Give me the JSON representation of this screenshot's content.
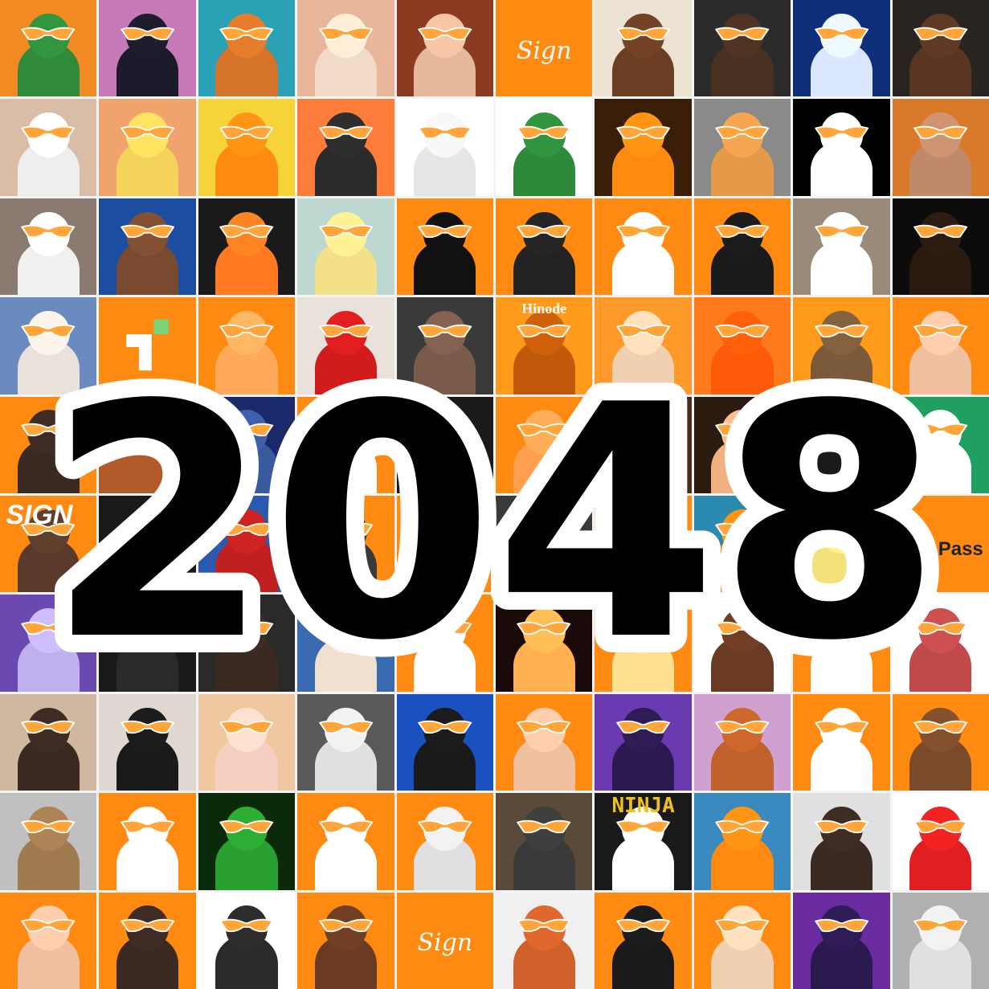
{
  "headline": {
    "text": "2048",
    "fill": "#000000",
    "outline": "#ffffff"
  },
  "palette": {
    "brand_orange": "#ff8a12",
    "glasses": "#ffa53a",
    "glasses_rim": "#ffffff"
  },
  "tiles": [
    {
      "bg": "#f28a24",
      "figure": "#2f8a3a",
      "icon": "frog-avatar"
    },
    {
      "bg": "#c77ab8",
      "figure": "#1b1b2b",
      "icon": "penguin-wizard-avatar"
    },
    {
      "bg": "#2aa1b5",
      "figure": "#d6732a",
      "icon": "cat-jester-avatar"
    },
    {
      "bg": "#e8b79a",
      "figure": "#f2dbc6",
      "icon": "anime-girl-avatar"
    },
    {
      "bg": "#8a3b22",
      "figure": "#e5b79b",
      "icon": "woman-portrait-avatar"
    },
    {
      "bg": "#ff8a12",
      "figure": "",
      "icon": "sign-logo-tile",
      "caption": "Sign",
      "caption_style": ""
    },
    {
      "bg": "#ece2d2",
      "figure": "#6b3d22",
      "icon": "crowned-man-avatar"
    },
    {
      "bg": "#2b2b2b",
      "figure": "#4a3020",
      "icon": "dreadlock-avatar"
    },
    {
      "bg": "#0e2f7a",
      "figure": "#dbe6ff",
      "icon": "astronaut-avatar"
    },
    {
      "bg": "#2a2420",
      "figure": "#5a3622",
      "icon": "woman-dark-avatar"
    },
    {
      "bg": "#d9bda6",
      "figure": "#eeeeee",
      "icon": "bird-avatar"
    },
    {
      "bg": "#f0a36a",
      "figure": "#f3d35a",
      "icon": "anime-blonde-avatar"
    },
    {
      "bg": "#f7d33a",
      "figure": "#ff8a12",
      "icon": "comic-cat-avatar"
    },
    {
      "bg": "#ff7d3a",
      "figure": "#2b2b2b",
      "icon": "penguin-avatar"
    },
    {
      "bg": "#ffffff",
      "figure": "#e6e6e6",
      "icon": "sketch-girl-avatar"
    },
    {
      "bg": "#ffffff",
      "figure": "#2d8a3a",
      "icon": "pixel-pepe-avatar"
    },
    {
      "bg": "#3a1e08",
      "figure": "#ff8a12",
      "icon": "lightning-cat-avatar"
    },
    {
      "bg": "#8a8a8a",
      "figure": "#e59a4a",
      "icon": "orange-cat-avatar"
    },
    {
      "bg": "#000000",
      "figure": "#ffffff",
      "icon": "yin-yang-avatar"
    },
    {
      "bg": "#d87a2a",
      "figure": "#c08a6a",
      "icon": "woman-smile-avatar"
    },
    {
      "bg": "#8a7a70",
      "figure": "#f0f0f0",
      "icon": "white-dog-avatar"
    },
    {
      "bg": "#1b4ea0",
      "figure": "#7a4a30",
      "icon": "bearded-man-avatar"
    },
    {
      "bg": "#1a1a1a",
      "figure": "#ff7a20",
      "icon": "neon-cat-avatar"
    },
    {
      "bg": "#bcd8d0",
      "figure": "#f5e08a",
      "icon": "flower-girl-avatar"
    },
    {
      "bg": "#ff8a12",
      "figure": "#111111",
      "icon": "matrix-man-avatar"
    },
    {
      "bg": "#ff8a12",
      "figure": "#222222",
      "icon": "smiley-pattern-avatar"
    },
    {
      "bg": "#ff8a12",
      "figure": "#ffffff",
      "icon": "robot-mascot-avatar"
    },
    {
      "bg": "#ff8a12",
      "figure": "#1a1a1a",
      "icon": "tree-silhouette-avatar"
    },
    {
      "bg": "#9a8a7a",
      "figure": "#ffffff",
      "icon": "fluffy-bird-avatar"
    },
    {
      "bg": "#0c0c0c",
      "figure": "#2a1a10",
      "icon": "dark-cat-avatar"
    },
    {
      "bg": "#6a8ac0",
      "figure": "#e8e2da",
      "icon": "husky-avatar"
    },
    {
      "bg": "#ff8a12",
      "figure": "",
      "icon": "pixel-logo-tile"
    },
    {
      "bg": "#ff8a12",
      "figure": "#ffa95a",
      "icon": "doodle-face-avatar"
    },
    {
      "bg": "#e8e2da",
      "figure": "#d11c1c",
      "icon": "mascot-suit-avatar"
    },
    {
      "bg": "#3a3a3a",
      "figure": "#7a5a4a",
      "icon": "young-man-avatar"
    },
    {
      "bg": "#ff9a1a",
      "figure": "#c05a0a",
      "icon": "hinode-cat-avatar",
      "caption": "Hinode",
      "caption_style": "small"
    },
    {
      "bg": "#ff9a2a",
      "figure": "#f0d0b0",
      "icon": "bald-man-avatar"
    },
    {
      "bg": "#ff7a1a",
      "figure": "#ff5a0a",
      "icon": "orange-blob-avatar"
    },
    {
      "bg": "#ff9a1a",
      "figure": "#7a5a3a",
      "icon": "ape-avatar"
    },
    {
      "bg": "#ff8a12",
      "figure": "#f0c0a0",
      "icon": "cartoon-boy-avatar"
    },
    {
      "bg": "#ff8a12",
      "figure": "#3a2a22",
      "icon": "hooded-boy-avatar"
    },
    {
      "bg": "#b25a2a",
      "figure": "",
      "icon": "sign-dynasty-tile"
    },
    {
      "bg": "#1a2a6a",
      "figure": "#3a5aa0",
      "icon": "blue-hair-avatar"
    },
    {
      "bg": "#ff8a12",
      "figure": "#ffffff",
      "icon": "orange-scene-avatar"
    },
    {
      "bg": "#1a1a1a",
      "figure": "#ffffff",
      "icon": "spiky-hair-avatar"
    },
    {
      "bg": "#ff8a12",
      "figure": "#ffa050",
      "icon": "orange-abstract-avatar"
    },
    {
      "bg": "#4a2a1a",
      "figure": "#d07a3a",
      "icon": "warrior-avatar"
    },
    {
      "bg": "#2a1a10",
      "figure": "#f0b080",
      "icon": "woman-light-avatar"
    },
    {
      "bg": "#ff8a12",
      "figure": "#1a1a1a",
      "icon": "lion-avatar"
    },
    {
      "bg": "#20a060",
      "figure": "#ffffff",
      "icon": "panda-avatar"
    },
    {
      "bg": "#ff8a12",
      "figure": "#5a3a2a",
      "icon": "sign-girl-avatar",
      "caption": "SIGN",
      "caption_style": "bold"
    },
    {
      "bg": "#1a1a1a",
      "figure": "#ff8a12",
      "icon": "dark-tile-avatar"
    },
    {
      "bg": "#2a5ab0",
      "figure": "#c02020",
      "icon": "robot-hero-avatar"
    },
    {
      "bg": "#ff8a12",
      "figure": "#3a3a3a",
      "icon": "watch-avatar"
    },
    {
      "bg": "#ff8a12",
      "figure": "#c05a0a",
      "icon": "orange-shape-avatar"
    },
    {
      "bg": "#3a3a3a",
      "figure": "#ff8a12",
      "icon": "stripes-avatar"
    },
    {
      "bg": "#ff8a12",
      "figure": "#ffa040",
      "icon": "orange-figure-avatar"
    },
    {
      "bg": "#2a8ab0",
      "figure": "#ff8a12",
      "icon": "fish-avatar"
    },
    {
      "bg": "#ffffff",
      "figure": "#f3e27a",
      "icon": "ape-yellow-avatar"
    },
    {
      "bg": "#ff8a12",
      "figure": "",
      "icon": "pass-logo-tile",
      "caption": "Pass",
      "caption_style": "dark"
    },
    {
      "bg": "#6a4ab0",
      "figure": "#c0b0f0",
      "icon": "laser-eye-avatar"
    },
    {
      "bg": "#1a1a1a",
      "figure": "#2a2a2a",
      "icon": "suit-avatar"
    },
    {
      "bg": "#2a2a2a",
      "figure": "#3a2a22",
      "icon": "long-hair-avatar"
    },
    {
      "bg": "#3a6ab0",
      "figure": "#f0e0d0",
      "icon": "dog-closeup-avatar"
    },
    {
      "bg": "#ff8a12",
      "figure": "#ffffff",
      "icon": "grin-mascot-avatar"
    },
    {
      "bg": "#1a0a0a",
      "figure": "#ffb050",
      "icon": "flame-hair-avatar"
    },
    {
      "bg": "#ff8a12",
      "figure": "#ffe090",
      "icon": "pixel-face-avatar"
    },
    {
      "bg": "#ffffff",
      "figure": "#6a3a22",
      "icon": "yellow-hoodie-avatar"
    },
    {
      "bg": "#ff8a12",
      "figure": "#ffffff",
      "icon": "ufo-mascot-avatar"
    },
    {
      "bg": "#ffffff",
      "figure": "#c04a4a",
      "icon": "abstract-hand-avatar"
    },
    {
      "bg": "#d0b8a0",
      "figure": "#3a2a22",
      "icon": "woman-earring-avatar"
    },
    {
      "bg": "#e0d8d0",
      "figure": "#1a1a1a",
      "icon": "girl-bangs-avatar"
    },
    {
      "bg": "#f0c8a0",
      "figure": "#f5d0c0",
      "icon": "chibi-girl-avatar"
    },
    {
      "bg": "#5a5a5a",
      "figure": "#e0e0e0",
      "icon": "beanie-cat-avatar"
    },
    {
      "bg": "#1a50c0",
      "figure": "#1a1a1a",
      "icon": "top-hat-pixel-avatar"
    },
    {
      "bg": "#ff8a12",
      "figure": "#f0c0a0",
      "icon": "selfie-man-avatar"
    },
    {
      "bg": "#6a3ab0",
      "figure": "#2a1a50",
      "icon": "purple-halo-avatar"
    },
    {
      "bg": "#d0a0d0",
      "figure": "#c0602a",
      "icon": "swirl-man-avatar"
    },
    {
      "bg": "#ff8a12",
      "figure": "#ffffff",
      "icon": "seeing-signs-stamp-avatar"
    },
    {
      "bg": "#ff8a12",
      "figure": "#7a4a2a",
      "icon": "groot-sign-avatar"
    },
    {
      "bg": "#c0c0c0",
      "figure": "#a07a50",
      "icon": "party-dog-avatar"
    },
    {
      "bg": "#ff8a12",
      "figure": "#ffffff",
      "icon": "red-cap-avatar"
    },
    {
      "bg": "#0a2a0a",
      "figure": "#2aa030",
      "icon": "green-man-avatar"
    },
    {
      "bg": "#ff8a12",
      "figure": "#ffffff",
      "icon": "pixel-cat-avatar"
    },
    {
      "bg": "#ff8a12",
      "figure": "#e0e0e0",
      "icon": "helmet-avatar"
    },
    {
      "bg": "#5a4a3a",
      "figure": "#3a3a3a",
      "icon": "vans-cap-avatar"
    },
    {
      "bg": "#1a1a1a",
      "figure": "#ffffff",
      "icon": "ninja-avatar",
      "caption": "NINJA",
      "caption_style": "ninja"
    },
    {
      "bg": "#3a8ac0",
      "figure": "#ff8a12",
      "icon": "anime-orange-hair-avatar"
    },
    {
      "bg": "#e0e0e0",
      "figure": "#3a2a22",
      "icon": "smiling-man-avatar"
    },
    {
      "bg": "#ffffff",
      "figure": "#e02020",
      "icon": "cartoon-kid-avatar"
    },
    {
      "bg": "#ff8a12",
      "figure": "#f0c0a0",
      "icon": "cartoon-man-avatar"
    },
    {
      "bg": "#ff8a12",
      "figure": "#3a2a22",
      "icon": "curly-hair-avatar"
    },
    {
      "bg": "#ffffff",
      "figure": "#2a2a2a",
      "icon": "manga-boy-avatar"
    },
    {
      "bg": "#ff8a12",
      "figure": "#6a3a22",
      "icon": "rapper-avatar"
    },
    {
      "bg": "#ff8a12",
      "figure": "",
      "icon": "sign-script-tile",
      "caption": "Sign",
      "caption_style": ""
    },
    {
      "bg": "#f0f0f0",
      "figure": "#d0602a",
      "icon": "sculpture-avatar"
    },
    {
      "bg": "#ff8a12",
      "figure": "#1a1a1a",
      "icon": "bucket-hat-avatar"
    },
    {
      "bg": "#ff8a12",
      "figure": "#f0d0b0",
      "icon": "pixel-man-avatar"
    },
    {
      "bg": "#6a2aa0",
      "figure": "#2a1a50",
      "icon": "purple-girl-avatar"
    },
    {
      "bg": "#b0b0b0",
      "figure": "#e0e0e0",
      "icon": "kitten-avatar"
    }
  ]
}
